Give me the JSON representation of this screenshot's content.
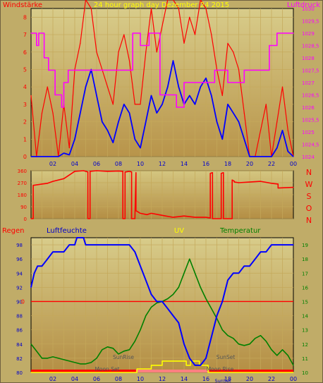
{
  "header": {
    "left_label": "Windstärke",
    "center_label": "24 hour graph day    Dezember 24 2015",
    "right_label": "Luftdruck"
  },
  "colors": {
    "background": "#c8b068",
    "plot_light": "#d8cc88",
    "plot_dark": "#b89448",
    "wind_gust": "#ff0000",
    "wind_avg": "#0000ff",
    "pressure": "#ff00ff",
    "direction": "#ff0000",
    "humidity": "#0000ff",
    "temperature": "#008000",
    "rain": "#ff0000",
    "uv": "#ffff00",
    "header_magenta": "#ff00ff",
    "header_yellow": "#ffff00"
  },
  "chart_data": [
    {
      "type": "line",
      "name": "wind_pressure",
      "x_ticks": [
        "02",
        "04",
        "06",
        "08",
        "10",
        "12",
        "14",
        "16",
        "18",
        "20",
        "22",
        "00"
      ],
      "y_left_ticks": [
        "0",
        "1",
        "2",
        "3",
        "4",
        "5",
        "6",
        "7",
        "8"
      ],
      "y_right_ticks": [
        "1024",
        "1024,5",
        "1025",
        "1025,5",
        "1026",
        "1026,5",
        "1027",
        "1027,5",
        "1028",
        "1028,5",
        "1029",
        "1029,5",
        "1030"
      ],
      "ylim_left": [
        0,
        8.5
      ],
      "ylim_right": [
        1024,
        1030
      ],
      "series": [
        {
          "name": "Windstärke",
          "axis": "left",
          "hours": [
            0,
            0.5,
            1.0,
            1.5,
            2.0,
            2.5,
            3.0,
            3.5,
            4.0,
            4.5,
            5.0,
            5.5,
            6.0,
            6.5,
            7.0,
            7.5,
            8.0,
            8.5,
            9.0,
            9.5,
            10.0,
            10.5,
            11.0,
            11.5,
            12.0,
            12.5,
            13.0,
            13.5,
            14.0,
            14.5,
            15.0,
            15.5,
            16.0,
            16.5,
            17.0,
            17.5,
            18.0,
            18.5,
            19.0,
            19.5,
            20.0,
            20.5,
            21.0,
            21.5,
            22.0,
            22.5,
            23.0,
            23.5,
            24.0
          ],
          "values": [
            0.0,
            0.0,
            0.0,
            0.0,
            0.0,
            0.0,
            0.2,
            0.1,
            1.0,
            2.5,
            4.0,
            5.0,
            3.5,
            2.0,
            1.5,
            0.8,
            2.0,
            3.0,
            2.5,
            1.0,
            0.5,
            2.0,
            3.5,
            2.5,
            3.0,
            4.0,
            5.5,
            4.0,
            3.0,
            3.5,
            3.0,
            4.0,
            4.5,
            3.5,
            2.0,
            1.0,
            3.0,
            2.5,
            2.0,
            1.0,
            0.0,
            0.0,
            0.0,
            0.0,
            0.0,
            0.5,
            1.5,
            0.3,
            0.0
          ]
        },
        {
          "name": "Windstärke Böen",
          "axis": "left",
          "hours": [
            0,
            0.5,
            1.0,
            1.5,
            2.0,
            2.5,
            3.0,
            3.5,
            4.0,
            4.5,
            5.0,
            5.5,
            6.0,
            6.5,
            7.0,
            7.5,
            8.0,
            8.5,
            9.0,
            9.5,
            10.0,
            10.5,
            11.0,
            11.5,
            12.0,
            12.5,
            13.0,
            13.5,
            14.0,
            14.5,
            15.0,
            15.5,
            16.0,
            16.5,
            17.0,
            17.5,
            18.0,
            18.5,
            19.0,
            19.5,
            20.0,
            20.5,
            21.0,
            21.5,
            22.0,
            22.5,
            23.0,
            23.5,
            24.0
          ],
          "values": [
            3.5,
            0.0,
            2.5,
            4.0,
            2.5,
            0.0,
            3.0,
            0.5,
            5.0,
            6.5,
            9.0,
            8.5,
            6.0,
            5.0,
            4.0,
            3.0,
            6.0,
            7.0,
            5.5,
            3.0,
            3.0,
            6.0,
            8.5,
            6.0,
            7.5,
            9.0,
            9.0,
            8.5,
            6.5,
            8.0,
            7.0,
            9.0,
            8.5,
            7.0,
            5.0,
            3.5,
            6.5,
            6.0,
            5.0,
            2.5,
            0.0,
            0.0,
            1.5,
            3.0,
            0.0,
            2.0,
            4.0,
            1.5,
            0.0
          ]
        },
        {
          "name": "Luftdruck",
          "axis": "right",
          "hours": [
            0,
            0.5,
            0.5,
            0.7,
            0.7,
            1.2,
            1.2,
            1.6,
            1.6,
            2.2,
            2.2,
            2.8,
            2.8,
            3.0,
            3.0,
            3.4,
            3.4,
            9.3,
            9.3,
            10.0,
            10.0,
            10.8,
            10.8,
            11.8,
            11.8,
            13.3,
            13.3,
            14.0,
            14.0,
            16.8,
            16.8,
            18.0,
            18.0,
            19.5,
            19.5,
            21.8,
            21.8,
            22.5,
            22.5,
            24.0
          ],
          "values": [
            1029,
            1029,
            1028.5,
            1028.5,
            1029,
            1029,
            1028,
            1028,
            1027.5,
            1027.5,
            1026.5,
            1026.5,
            1026,
            1026,
            1027,
            1027,
            1027.5,
            1027.5,
            1029,
            1029,
            1028.5,
            1028.5,
            1029,
            1029,
            1026.5,
            1026.5,
            1026,
            1026,
            1027,
            1027,
            1027.5,
            1027.5,
            1027,
            1027,
            1027.5,
            1027.5,
            1028.5,
            1028.5,
            1029,
            1029
          ]
        }
      ]
    },
    {
      "type": "line",
      "name": "wind_direction",
      "x_ticks": [
        "02",
        "04",
        "06",
        "08",
        "10",
        "12",
        "14",
        "16",
        "18",
        "20",
        "22",
        "00"
      ],
      "y_ticks": [
        "0",
        "90",
        "180",
        "270",
        "360"
      ],
      "compass": [
        "N",
        "W",
        "S",
        "O",
        "N"
      ],
      "ylim": [
        0,
        360
      ],
      "series": [
        {
          "name": "Windrichtung",
          "hours": [
            0,
            0.2,
            0.2,
            1.0,
            1.5,
            2.0,
            3.0,
            4.0,
            4.8,
            5.0,
            5.2,
            5.2,
            5.4,
            5.4,
            6.0,
            7.0,
            8.0,
            8.4,
            8.4,
            8.6,
            8.6,
            9.0,
            9.2,
            9.2,
            9.5,
            9.6,
            9.6,
            10.0,
            10.6,
            11.0,
            12.0,
            13.0,
            14.0,
            15.0,
            16.0,
            16.4,
            16.4,
            16.6,
            16.6,
            17.0,
            17.4,
            17.4,
            17.6,
            17.6,
            18.0,
            18.4,
            18.4,
            18.6,
            18.6,
            19.0,
            20.0,
            21.0,
            22.0,
            22.6,
            22.6,
            24.0
          ],
          "values": [
            0,
            0,
            250,
            260,
            265,
            280,
            300,
            355,
            360,
            355,
            350,
            0,
            0,
            355,
            360,
            355,
            358,
            355,
            0,
            0,
            350,
            355,
            350,
            0,
            0,
            345,
            60,
            40,
            30,
            40,
            25,
            10,
            20,
            10,
            10,
            5,
            340,
            345,
            0,
            0,
            0,
            340,
            345,
            0,
            0,
            0,
            290,
            280,
            275,
            270,
            275,
            280,
            265,
            260,
            230,
            235
          ]
        }
      ]
    },
    {
      "type": "line",
      "name": "humidity_temperature",
      "header": {
        "rain": "Regen",
        "humidity": "Luftfeuchte",
        "uv": "UV",
        "temperature": "Temperatur"
      },
      "x_ticks": [
        "02",
        "04",
        "06",
        "08",
        "10",
        "12",
        "14",
        "16",
        "18",
        "20",
        "22",
        "00"
      ],
      "y_left_ticks": [
        "80",
        "82",
        "84",
        "86",
        "88",
        "90",
        "92",
        "94",
        "96",
        "98"
      ],
      "y_right_ticks": [
        "10",
        "11",
        "12",
        "13",
        "14",
        "15",
        "16",
        "17",
        "18",
        "19"
      ],
      "rain_label": "0",
      "ylim_left": [
        80,
        99
      ],
      "ylim_right": [
        10,
        19.5
      ],
      "annotations": [
        "SunRise",
        "SunSet",
        "Moon Set",
        "Moon Rise"
      ],
      "series": [
        {
          "name": "Luftfeuchte",
          "axis": "left",
          "hours": [
            0,
            0.3,
            0.6,
            1.0,
            1.5,
            2.0,
            2.5,
            3.0,
            3.5,
            4.0,
            4.2,
            4.8,
            5.0,
            5.5,
            6.0,
            7.0,
            8.0,
            9.0,
            9.5,
            10.0,
            10.5,
            11.0,
            11.5,
            12.0,
            12.5,
            13.0,
            13.5,
            14.0,
            14.5,
            15.0,
            15.5,
            16.0,
            16.5,
            17.0,
            17.5,
            18.0,
            18.5,
            19.0,
            19.5,
            20.0,
            20.5,
            21.0,
            21.5,
            22.0,
            22.5,
            23.0,
            23.5,
            24.0
          ],
          "values": [
            92,
            94,
            95,
            95,
            96,
            97,
            97,
            97,
            98,
            98,
            99,
            99,
            98,
            98,
            98,
            98,
            98,
            98,
            97,
            95,
            93,
            91,
            90,
            90,
            89,
            88,
            87,
            84,
            82,
            81,
            81,
            82,
            85,
            88,
            90,
            93,
            94,
            94,
            95,
            95,
            96,
            97,
            97,
            98,
            98,
            98,
            98,
            98
          ]
        },
        {
          "name": "Temperatur",
          "axis": "right",
          "hours": [
            0,
            0.5,
            1.0,
            1.5,
            2.0,
            2.5,
            3.0,
            3.5,
            4.0,
            4.5,
            5.0,
            5.5,
            6.0,
            6.5,
            7.0,
            7.5,
            8.0,
            8.5,
            9.0,
            9.5,
            10.0,
            10.5,
            11.0,
            11.5,
            12.0,
            12.5,
            13.0,
            13.5,
            14.0,
            14.5,
            15.0,
            15.5,
            16.0,
            16.5,
            17.0,
            17.5,
            18.0,
            18.5,
            19.0,
            19.5,
            20.0,
            20.5,
            21.0,
            21.5,
            22.0,
            22.5,
            23.0,
            23.5,
            24.0
          ],
          "values": [
            12.0,
            11.5,
            11.0,
            11.0,
            11.1,
            11.0,
            10.9,
            10.8,
            10.7,
            10.6,
            10.6,
            10.7,
            11.0,
            11.6,
            11.8,
            11.7,
            11.3,
            11.5,
            11.6,
            12.2,
            13.0,
            14.0,
            14.6,
            14.9,
            15.0,
            15.2,
            15.5,
            16.0,
            17.0,
            18.0,
            17.0,
            16.0,
            15.2,
            14.5,
            13.8,
            13.0,
            12.6,
            12.4,
            12.0,
            11.9,
            12.0,
            12.4,
            12.6,
            12.2,
            11.6,
            11.2,
            11.6,
            11.2,
            10.5
          ]
        },
        {
          "name": "UV",
          "axis": "left",
          "hours": [
            0,
            9.7,
            9.7,
            11.0,
            11.0,
            12.0,
            12.0,
            14.2,
            14.2,
            14.6,
            14.6,
            15.4,
            15.4,
            16.2,
            16.2,
            24.0
          ],
          "values": [
            80,
            80,
            80.5,
            80.5,
            81.0,
            81.0,
            81.6,
            81.6,
            81.0,
            81.0,
            81.6,
            81.6,
            81.0,
            81.0,
            80,
            80
          ]
        }
      ]
    }
  ]
}
